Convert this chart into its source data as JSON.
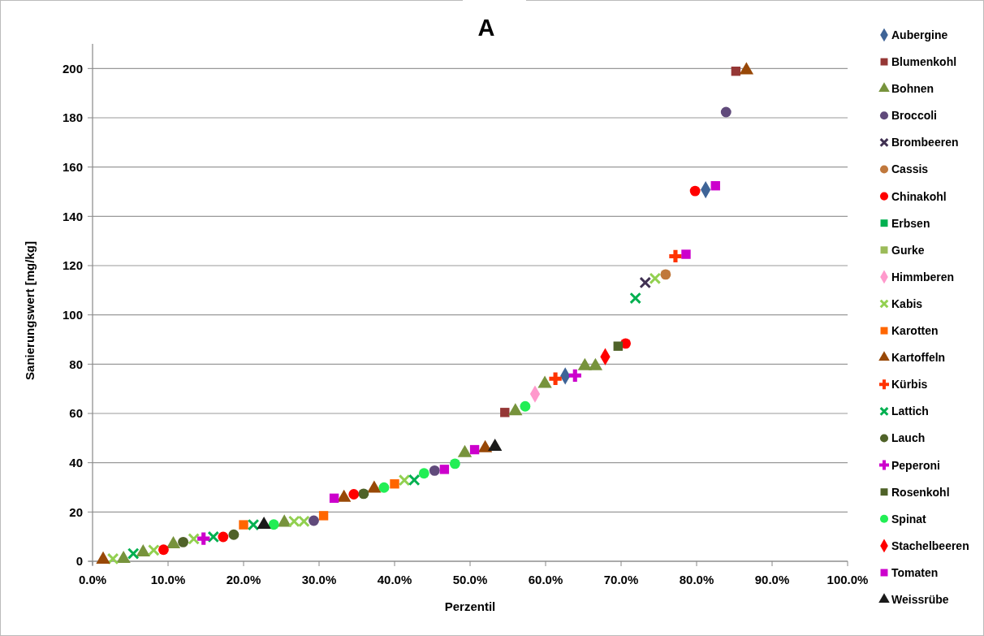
{
  "chart_data": {
    "type": "scatter",
    "title": "A",
    "xlabel": "Perzentil",
    "ylabel": "Sanierungswert [mg/kg]",
    "xlim": [
      0,
      100
    ],
    "ylim": [
      0,
      210
    ],
    "xticks": [
      {
        "value": 0,
        "label": "0.0%"
      },
      {
        "value": 10,
        "label": "10.0%"
      },
      {
        "value": 20,
        "label": "20.0%"
      },
      {
        "value": 30,
        "label": "30.0%"
      },
      {
        "value": 40,
        "label": "40.0%"
      },
      {
        "value": 50,
        "label": "50.0%"
      },
      {
        "value": 60,
        "label": "60.0%"
      },
      {
        "value": 70,
        "label": "70.0%"
      },
      {
        "value": 80,
        "label": "80.0%"
      },
      {
        "value": 90,
        "label": "90.0%"
      },
      {
        "value": 100,
        "label": "100.0%"
      }
    ],
    "yticks": [
      0,
      20,
      40,
      60,
      80,
      100,
      120,
      140,
      160,
      180,
      200
    ],
    "grid": "y",
    "legend": "right",
    "series": [
      {
        "name": "Aubergine",
        "color": "#3f6497",
        "marker": "diamond",
        "x": [
          62.6,
          81.2
        ],
        "values": [
          75.2,
          150.8
        ]
      },
      {
        "name": "Blumenkohl",
        "color": "#953735",
        "marker": "square",
        "x": [
          54.6,
          85.2
        ],
        "values": [
          60.4,
          198.9
        ]
      },
      {
        "name": "Bohnen",
        "color": "#77933c",
        "marker": "triangle",
        "x": [
          4.1,
          6.7,
          10.7,
          25.4,
          49.3,
          56.0,
          59.9,
          65.2,
          66.6
        ],
        "values": [
          1,
          3.6,
          6.9,
          15.7,
          43.9,
          60.9,
          72.0,
          79.2,
          79.2
        ]
      },
      {
        "name": "Broccoli",
        "color": "#604a7b",
        "marker": "circle",
        "x": [
          29.3,
          45.3,
          83.9
        ],
        "values": [
          16.5,
          36.8,
          182.3
        ]
      },
      {
        "name": "Brombeeren",
        "color": "#403152",
        "marker": "x",
        "x": [
          73.2
        ],
        "values": [
          113.1
        ]
      },
      {
        "name": "Cassis",
        "color": "#c0783c",
        "marker": "circle",
        "x": [
          75.9
        ],
        "values": [
          116.4
        ]
      },
      {
        "name": "Chinakohl",
        "color": "#ff0000",
        "marker": "circle",
        "x": [
          9.4,
          17.3,
          34.6,
          70.6,
          79.8
        ],
        "values": [
          4.7,
          9.9,
          27.2,
          88.4,
          150.3
        ]
      },
      {
        "name": "Erbsen",
        "color": "#00b050",
        "marker": "square"
      },
      {
        "name": "Gurke",
        "color": "#9bbb59",
        "marker": "square"
      },
      {
        "name": "Himmberen",
        "color": "#ff99cc",
        "marker": "diamond",
        "x": [
          58.6
        ],
        "values": [
          67.9
        ]
      },
      {
        "name": "Kabis",
        "color": "#92d050",
        "marker": "x",
        "x": [
          2.7,
          8.1,
          13.4,
          26.7,
          28.0,
          41.3,
          74.5
        ],
        "values": [
          1,
          4.5,
          9.1,
          16.2,
          16.2,
          32.9,
          114.8
        ]
      },
      {
        "name": "Karotten",
        "color": "#ff6600",
        "marker": "square",
        "x": [
          20.0,
          30.6,
          40.0
        ],
        "values": [
          14.8,
          18.5,
          31.4
        ]
      },
      {
        "name": "Kartoffeln",
        "color": "#984807",
        "marker": "triangle",
        "x": [
          1.4,
          33.3,
          37.3,
          52.0,
          86.6
        ],
        "values": [
          0.7,
          25.8,
          29.5,
          45.9,
          199.3
        ]
      },
      {
        "name": "Kürbis",
        "color": "#ff3300",
        "marker": "cross",
        "x": [
          61.3,
          77.2
        ],
        "values": [
          74.1,
          123.8
        ]
      },
      {
        "name": "Lattich",
        "color": "#00b050",
        "marker": "x",
        "x": [
          5.4,
          16.0,
          21.3,
          42.6,
          71.9
        ],
        "values": [
          3.1,
          9.9,
          14.8,
          33.0,
          106.8
        ]
      },
      {
        "name": "Lauch",
        "color": "#4f6228",
        "marker": "circle",
        "x": [
          12.0,
          18.7,
          35.9
        ],
        "values": [
          7.8,
          10.8,
          27.4
        ]
      },
      {
        "name": "Peperoni",
        "color": "#cc00cc",
        "marker": "cross",
        "x": [
          14.7,
          63.9
        ],
        "values": [
          9.2,
          75.4
        ]
      },
      {
        "name": "Rosenkohl",
        "color": "#4f6228",
        "marker": "square",
        "x": [
          69.6
        ],
        "values": [
          87.3
        ]
      },
      {
        "name": "Spinat",
        "color": "#22ee55",
        "marker": "circle",
        "x": [
          24.0,
          38.6,
          43.9,
          48.0,
          57.3
        ],
        "values": [
          14.9,
          29.9,
          35.7,
          39.6,
          62.9
        ]
      },
      {
        "name": "Stachelbeeren",
        "color": "#ff0000",
        "marker": "diamond",
        "x": [
          67.9
        ],
        "values": [
          83.0
        ]
      },
      {
        "name": "Tomaten",
        "color": "#cc00cc",
        "marker": "square",
        "x": [
          32.0,
          46.6,
          50.6,
          78.6,
          82.5
        ],
        "values": [
          25.6,
          37.3,
          45.3,
          124.6,
          152.4
        ]
      },
      {
        "name": "Weissrübe",
        "color": "#1a1a1a",
        "marker": "triangle",
        "x": [
          22.7,
          53.3
        ],
        "values": [
          14.8,
          46.5
        ]
      }
    ]
  }
}
